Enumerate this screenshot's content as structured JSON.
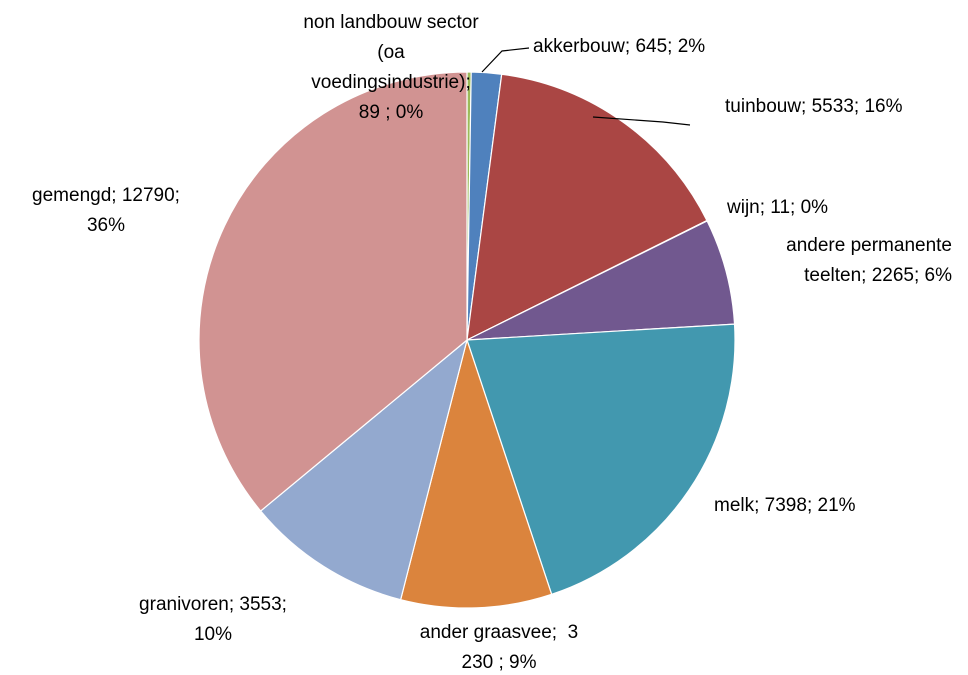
{
  "chart_data": {
    "type": "pie",
    "title": "",
    "legend": "none",
    "slices": [
      {
        "name": "non landbouw sector (oa voedingsindustrie)",
        "value": 89,
        "percent": "0%",
        "color": "#9bbb59",
        "label_lines": [
          "non landbouw sector",
          "(oa",
          "voedingsindustrie);",
          "89 ; 0%"
        ]
      },
      {
        "name": "akkerbouw",
        "value": 645,
        "percent": "2%",
        "color": "#4f81bd",
        "label_lines": [
          "akkerbouw; 645; 2%"
        ]
      },
      {
        "name": "tuinbouw",
        "value": 5533,
        "percent": "16%",
        "color": "#aa4644",
        "label_lines": [
          "tuinbouw; 5533; 16%"
        ]
      },
      {
        "name": "wijn",
        "value": 11,
        "percent": "0%",
        "color": "#3f5f8a",
        "label_lines": [
          "wijn; 11; 0%"
        ]
      },
      {
        "name": "andere permanente teelten",
        "value": 2265,
        "percent": "6%",
        "color": "#71588f",
        "label_lines": [
          "andere permanente",
          "teelten; 2265; 6%"
        ]
      },
      {
        "name": "melk",
        "value": 7398,
        "percent": "21%",
        "color": "#4298af",
        "label_lines": [
          "melk; 7398; 21%"
        ]
      },
      {
        "name": "ander graasvee",
        "value": 3230,
        "percent": "9%",
        "color": "#db843d",
        "label_lines": [
          "ander graasvee;  3",
          "230 ; 9%"
        ]
      },
      {
        "name": "granivoren",
        "value": 3553,
        "percent": "10%",
        "color": "#93a9cf",
        "label_lines": [
          "granivoren; 3553;",
          "10%"
        ]
      },
      {
        "name": "gemengd",
        "value": 12790,
        "percent": "36%",
        "color": "#d19392",
        "label_lines": [
          "gemengd; 12790;",
          "36%"
        ]
      }
    ]
  }
}
